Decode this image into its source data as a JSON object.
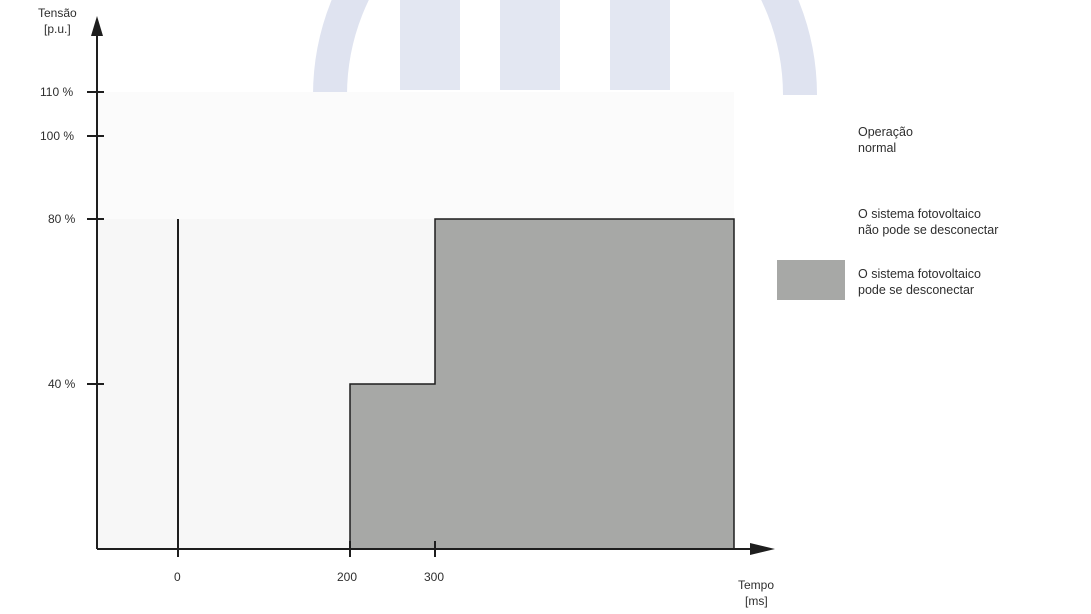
{
  "colors": {
    "background": "#ffffff",
    "zone_normal": "#fbfbfb",
    "zone_no_disconnect": "#f6f6f6",
    "zone_disconnect": "#a7a8a6",
    "watermark": "#dfe3f0",
    "axis": "#1e1e1e"
  },
  "axes": {
    "y_title_line1": "Tensão",
    "y_title_line2": "[p.u.]",
    "x_title_line1": "Tempo",
    "x_title_line2": "[ms]",
    "y_ticks": [
      "110 %",
      "100 %",
      "80 %",
      "40 %"
    ],
    "x_ticks": [
      "0",
      "200",
      "300"
    ]
  },
  "legend": {
    "normal_line1": "Operação",
    "normal_line2": "normal",
    "no_disconnect_line1": "O sistema fotovoltaico",
    "no_disconnect_line2": "não pode se desconectar",
    "disconnect_line1": "O sistema fotovoltaico",
    "disconnect_line2": "pode se desconectar"
  },
  "chart_data": {
    "type": "area",
    "xlabel": "Tempo [ms]",
    "ylabel": "Tensão [p.u.]",
    "y_ticks": [
      110,
      100,
      80,
      40
    ],
    "x_ticks": [
      0,
      200,
      300
    ],
    "regions": [
      {
        "name": "Operação normal",
        "y_range": [
          80,
          110
        ]
      },
      {
        "name": "O sistema fotovoltaico não pode se desconectar",
        "segments": [
          {
            "x": [
              0,
              200
            ],
            "y": [
              0,
              80
            ]
          },
          {
            "x": [
              200,
              300
            ],
            "y": [
              40,
              80
            ]
          }
        ]
      },
      {
        "name": "O sistema fotovoltaico pode se desconectar",
        "segments": [
          {
            "x": [
              200,
              300
            ],
            "y": [
              0,
              40
            ]
          },
          {
            "x": [
              300
            ],
            "y": [
              0,
              80
            ]
          }
        ]
      }
    ]
  }
}
